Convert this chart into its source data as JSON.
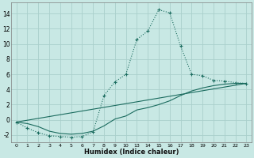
{
  "xlabel": "Humidex (Indice chaleur)",
  "background_color": "#c8e8e4",
  "grid_color": "#aacfcb",
  "line_color": "#1a6b5e",
  "xlim": [
    -0.5,
    23.5
  ],
  "ylim": [
    -3.0,
    15.5
  ],
  "yticks": [
    -2,
    0,
    2,
    4,
    6,
    8,
    10,
    12,
    14
  ],
  "xticks": [
    0,
    1,
    2,
    3,
    4,
    5,
    6,
    7,
    8,
    9,
    10,
    13,
    14,
    15,
    16,
    17,
    18,
    19,
    20,
    21,
    22,
    23
  ],
  "curve1_x": [
    0,
    1,
    2,
    3,
    4,
    5,
    6,
    7,
    8,
    9,
    10,
    13,
    14,
    15,
    16,
    17,
    18,
    19,
    20,
    21,
    22,
    23
  ],
  "curve1_y": [
    -0.3,
    -1.1,
    -1.7,
    -2.1,
    -2.2,
    -2.3,
    -2.2,
    -1.6,
    3.2,
    5.0,
    6.0,
    10.6,
    11.7,
    14.5,
    14.1,
    9.7,
    6.0,
    5.8,
    5.2,
    5.1,
    4.9,
    4.8
  ],
  "curve2_x": [
    0,
    1,
    2,
    3,
    4,
    5,
    6,
    7,
    8,
    9,
    10,
    13,
    14,
    15,
    16,
    17,
    18,
    19,
    20,
    21,
    22,
    23
  ],
  "curve2_y": [
    -0.3,
    -0.5,
    -0.9,
    -1.5,
    -1.8,
    -1.9,
    -1.8,
    -1.5,
    -0.8,
    0.1,
    0.5,
    1.3,
    1.6,
    2.0,
    2.5,
    3.2,
    3.8,
    4.2,
    4.5,
    4.7,
    4.8,
    4.8
  ],
  "curve3_x": [
    0,
    23
  ],
  "curve3_y": [
    -0.3,
    4.8
  ]
}
